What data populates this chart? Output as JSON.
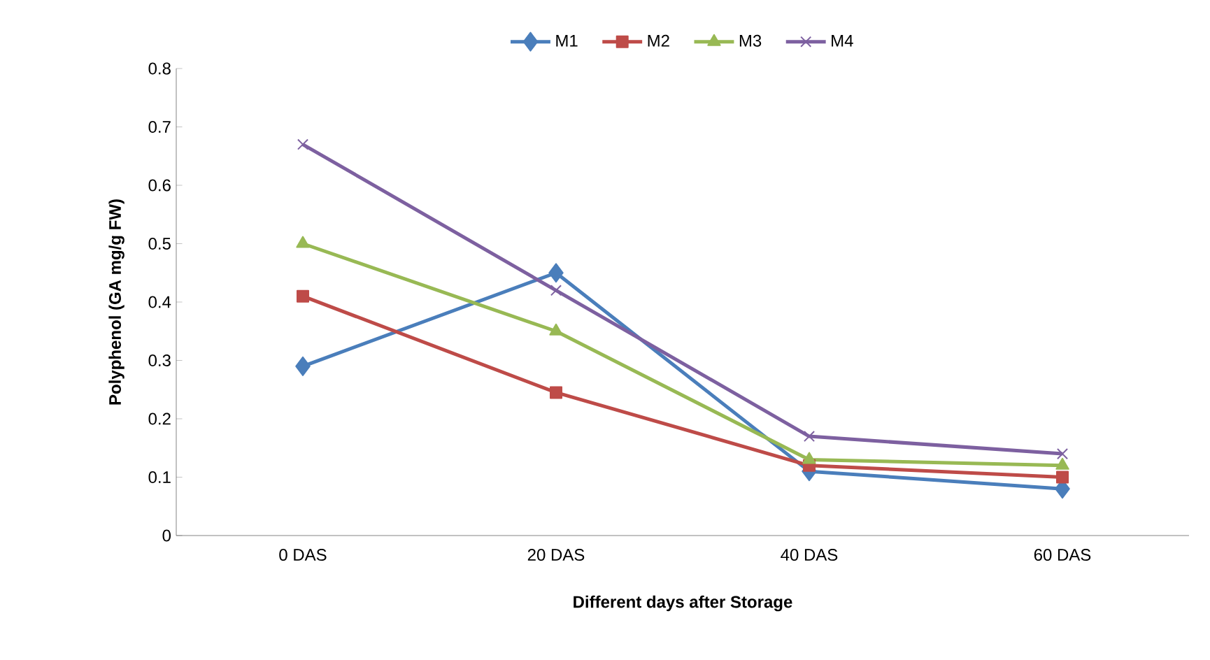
{
  "chart_data": {
    "type": "line",
    "xlabel": "Different days after Storage",
    "ylabel": "Polyphenol (GA mg/g FW)",
    "categories": [
      "0 DAS",
      "20 DAS",
      "40 DAS",
      "60 DAS"
    ],
    "series": [
      {
        "name": "M1",
        "color": "#4a7ebb",
        "marker": "diamond",
        "values": [
          0.29,
          0.45,
          0.11,
          0.08
        ]
      },
      {
        "name": "M2",
        "color": "#be4b48",
        "marker": "square",
        "values": [
          0.41,
          0.245,
          0.12,
          0.1
        ]
      },
      {
        "name": "M3",
        "color": "#98b954",
        "marker": "triangle",
        "values": [
          0.5,
          0.35,
          0.13,
          0.12
        ]
      },
      {
        "name": "M4",
        "color": "#7d60a0",
        "marker": "cross",
        "values": [
          0.67,
          0.42,
          0.17,
          0.14
        ]
      }
    ],
    "ylim": [
      0,
      0.8
    ],
    "yticks": [
      0,
      0.1,
      0.2,
      0.3,
      0.4,
      0.5,
      0.6,
      0.7,
      0.8
    ],
    "grid": false,
    "legend": "top",
    "line_style": "solid"
  }
}
